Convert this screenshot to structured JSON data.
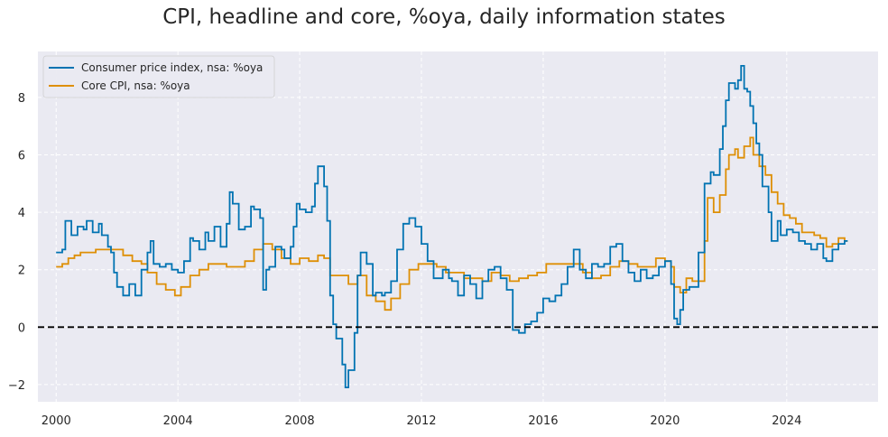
{
  "chart_data": {
    "type": "line",
    "title": "CPI, headline and core, %oya, daily information states",
    "xlabel": "",
    "ylabel": "",
    "xlim": [
      1999.4,
      2027.0
    ],
    "ylim": [
      -2.6,
      9.6
    ],
    "x_ticks": [
      2000,
      2004,
      2008,
      2012,
      2016,
      2020,
      2024
    ],
    "x_tick_labels": [
      "2000",
      "2004",
      "2008",
      "2012",
      "2016",
      "2020",
      "2024"
    ],
    "y_ticks": [
      -2,
      0,
      2,
      4,
      6,
      8
    ],
    "y_tick_labels": [
      "−2",
      "0",
      "2",
      "4",
      "6",
      "8"
    ],
    "grid": true,
    "legend_position": "top-left",
    "reference_line": {
      "y": 0,
      "style": "dashed",
      "color": "#000000"
    },
    "colors": {
      "background": "#EAEAF2",
      "grid": "#FFFFFF"
    },
    "series": [
      {
        "name": "Consumer price index, nsa: %oya",
        "color": "#0173B2",
        "step": true,
        "points": [
          [
            2000.0,
            2.6
          ],
          [
            2000.2,
            2.7
          ],
          [
            2000.3,
            3.7
          ],
          [
            2000.5,
            3.2
          ],
          [
            2000.7,
            3.5
          ],
          [
            2000.9,
            3.4
          ],
          [
            2001.0,
            3.7
          ],
          [
            2001.2,
            3.3
          ],
          [
            2001.4,
            3.6
          ],
          [
            2001.5,
            3.2
          ],
          [
            2001.7,
            2.8
          ],
          [
            2001.8,
            2.6
          ],
          [
            2001.9,
            1.9
          ],
          [
            2002.0,
            1.4
          ],
          [
            2002.2,
            1.1
          ],
          [
            2002.4,
            1.5
          ],
          [
            2002.6,
            1.1
          ],
          [
            2002.8,
            2.0
          ],
          [
            2003.0,
            2.6
          ],
          [
            2003.1,
            3.0
          ],
          [
            2003.2,
            2.2
          ],
          [
            2003.4,
            2.1
          ],
          [
            2003.6,
            2.2
          ],
          [
            2003.8,
            2.0
          ],
          [
            2004.0,
            1.9
          ],
          [
            2004.2,
            2.3
          ],
          [
            2004.4,
            3.1
          ],
          [
            2004.5,
            3.0
          ],
          [
            2004.7,
            2.7
          ],
          [
            2004.9,
            3.3
          ],
          [
            2005.0,
            3.0
          ],
          [
            2005.2,
            3.5
          ],
          [
            2005.4,
            2.8
          ],
          [
            2005.6,
            3.6
          ],
          [
            2005.7,
            4.7
          ],
          [
            2005.8,
            4.3
          ],
          [
            2006.0,
            3.4
          ],
          [
            2006.2,
            3.5
          ],
          [
            2006.4,
            4.2
          ],
          [
            2006.5,
            4.1
          ],
          [
            2006.7,
            3.8
          ],
          [
            2006.8,
            1.3
          ],
          [
            2006.9,
            2.0
          ],
          [
            2007.0,
            2.1
          ],
          [
            2007.2,
            2.8
          ],
          [
            2007.4,
            2.7
          ],
          [
            2007.5,
            2.4
          ],
          [
            2007.7,
            2.8
          ],
          [
            2007.8,
            3.5
          ],
          [
            2007.9,
            4.3
          ],
          [
            2008.0,
            4.1
          ],
          [
            2008.2,
            4.0
          ],
          [
            2008.4,
            4.2
          ],
          [
            2008.5,
            5.0
          ],
          [
            2008.6,
            5.6
          ],
          [
            2008.8,
            4.9
          ],
          [
            2008.9,
            3.7
          ],
          [
            2009.0,
            1.1
          ],
          [
            2009.1,
            0.1
          ],
          [
            2009.2,
            -0.4
          ],
          [
            2009.4,
            -1.3
          ],
          [
            2009.5,
            -2.1
          ],
          [
            2009.6,
            -1.5
          ],
          [
            2009.8,
            -0.2
          ],
          [
            2009.9,
            1.8
          ],
          [
            2010.0,
            2.6
          ],
          [
            2010.2,
            2.2
          ],
          [
            2010.4,
            1.1
          ],
          [
            2010.5,
            1.2
          ],
          [
            2010.7,
            1.1
          ],
          [
            2010.8,
            1.2
          ],
          [
            2011.0,
            1.6
          ],
          [
            2011.2,
            2.7
          ],
          [
            2011.4,
            3.6
          ],
          [
            2011.6,
            3.8
          ],
          [
            2011.8,
            3.5
          ],
          [
            2012.0,
            2.9
          ],
          [
            2012.2,
            2.3
          ],
          [
            2012.4,
            1.7
          ],
          [
            2012.6,
            1.7
          ],
          [
            2012.7,
            2.0
          ],
          [
            2012.9,
            1.7
          ],
          [
            2013.0,
            1.6
          ],
          [
            2013.2,
            1.1
          ],
          [
            2013.4,
            1.8
          ],
          [
            2013.6,
            1.5
          ],
          [
            2013.8,
            1.0
          ],
          [
            2014.0,
            1.6
          ],
          [
            2014.2,
            2.0
          ],
          [
            2014.4,
            2.1
          ],
          [
            2014.6,
            1.7
          ],
          [
            2014.8,
            1.3
          ],
          [
            2015.0,
            -0.1
          ],
          [
            2015.2,
            -0.2
          ],
          [
            2015.4,
            0.1
          ],
          [
            2015.6,
            0.2
          ],
          [
            2015.8,
            0.5
          ],
          [
            2016.0,
            1.0
          ],
          [
            2016.2,
            0.9
          ],
          [
            2016.4,
            1.1
          ],
          [
            2016.6,
            1.5
          ],
          [
            2016.8,
            2.1
          ],
          [
            2017.0,
            2.7
          ],
          [
            2017.2,
            2.0
          ],
          [
            2017.4,
            1.7
          ],
          [
            2017.6,
            2.2
          ],
          [
            2017.8,
            2.1
          ],
          [
            2018.0,
            2.2
          ],
          [
            2018.2,
            2.8
          ],
          [
            2018.4,
            2.9
          ],
          [
            2018.6,
            2.3
          ],
          [
            2018.8,
            1.9
          ],
          [
            2019.0,
            1.6
          ],
          [
            2019.2,
            2.0
          ],
          [
            2019.4,
            1.7
          ],
          [
            2019.6,
            1.8
          ],
          [
            2019.8,
            2.1
          ],
          [
            2020.0,
            2.3
          ],
          [
            2020.2,
            1.5
          ],
          [
            2020.3,
            0.3
          ],
          [
            2020.4,
            0.1
          ],
          [
            2020.5,
            0.6
          ],
          [
            2020.6,
            1.3
          ],
          [
            2020.8,
            1.4
          ],
          [
            2021.0,
            1.4
          ],
          [
            2021.1,
            2.6
          ],
          [
            2021.3,
            5.0
          ],
          [
            2021.5,
            5.4
          ],
          [
            2021.6,
            5.3
          ],
          [
            2021.8,
            6.2
          ],
          [
            2021.9,
            7.0
          ],
          [
            2022.0,
            7.9
          ],
          [
            2022.1,
            8.5
          ],
          [
            2022.3,
            8.3
          ],
          [
            2022.4,
            8.6
          ],
          [
            2022.5,
            9.1
          ],
          [
            2022.6,
            8.3
          ],
          [
            2022.7,
            8.2
          ],
          [
            2022.8,
            7.7
          ],
          [
            2022.9,
            7.1
          ],
          [
            2023.0,
            6.4
          ],
          [
            2023.1,
            6.0
          ],
          [
            2023.2,
            4.9
          ],
          [
            2023.4,
            4.0
          ],
          [
            2023.5,
            3.0
          ],
          [
            2023.7,
            3.7
          ],
          [
            2023.8,
            3.2
          ],
          [
            2024.0,
            3.4
          ],
          [
            2024.2,
            3.3
          ],
          [
            2024.4,
            3.0
          ],
          [
            2024.6,
            2.9
          ],
          [
            2024.8,
            2.7
          ],
          [
            2025.0,
            2.9
          ],
          [
            2025.2,
            2.4
          ],
          [
            2025.3,
            2.3
          ],
          [
            2025.5,
            2.7
          ],
          [
            2025.7,
            2.9
          ],
          [
            2025.9,
            3.0
          ]
        ]
      },
      {
        "name": "Core CPI, nsa: %oya",
        "color": "#DE8F05",
        "step": true,
        "points": [
          [
            2000.0,
            2.1
          ],
          [
            2000.2,
            2.2
          ],
          [
            2000.4,
            2.4
          ],
          [
            2000.6,
            2.5
          ],
          [
            2000.8,
            2.6
          ],
          [
            2001.0,
            2.6
          ],
          [
            2001.3,
            2.7
          ],
          [
            2001.6,
            2.7
          ],
          [
            2001.9,
            2.7
          ],
          [
            2002.2,
            2.5
          ],
          [
            2002.5,
            2.3
          ],
          [
            2002.8,
            2.2
          ],
          [
            2003.0,
            1.9
          ],
          [
            2003.3,
            1.5
          ],
          [
            2003.6,
            1.3
          ],
          [
            2003.9,
            1.1
          ],
          [
            2004.1,
            1.4
          ],
          [
            2004.4,
            1.8
          ],
          [
            2004.7,
            2.0
          ],
          [
            2005.0,
            2.2
          ],
          [
            2005.3,
            2.2
          ],
          [
            2005.6,
            2.1
          ],
          [
            2005.9,
            2.1
          ],
          [
            2006.2,
            2.3
          ],
          [
            2006.5,
            2.7
          ],
          [
            2006.8,
            2.9
          ],
          [
            2007.1,
            2.7
          ],
          [
            2007.4,
            2.4
          ],
          [
            2007.7,
            2.2
          ],
          [
            2008.0,
            2.4
          ],
          [
            2008.3,
            2.3
          ],
          [
            2008.6,
            2.5
          ],
          [
            2008.8,
            2.4
          ],
          [
            2009.0,
            1.8
          ],
          [
            2009.3,
            1.8
          ],
          [
            2009.6,
            1.5
          ],
          [
            2009.9,
            1.8
          ],
          [
            2010.2,
            1.1
          ],
          [
            2010.5,
            0.9
          ],
          [
            2010.8,
            0.6
          ],
          [
            2011.0,
            1.0
          ],
          [
            2011.3,
            1.5
          ],
          [
            2011.6,
            2.0
          ],
          [
            2011.9,
            2.2
          ],
          [
            2012.2,
            2.2
          ],
          [
            2012.5,
            2.1
          ],
          [
            2012.8,
            1.9
          ],
          [
            2013.1,
            1.9
          ],
          [
            2013.4,
            1.7
          ],
          [
            2013.7,
            1.7
          ],
          [
            2014.0,
            1.6
          ],
          [
            2014.3,
            1.9
          ],
          [
            2014.6,
            1.8
          ],
          [
            2014.9,
            1.6
          ],
          [
            2015.2,
            1.7
          ],
          [
            2015.5,
            1.8
          ],
          [
            2015.8,
            1.9
          ],
          [
            2016.1,
            2.2
          ],
          [
            2016.4,
            2.2
          ],
          [
            2016.7,
            2.2
          ],
          [
            2017.0,
            2.2
          ],
          [
            2017.3,
            1.9
          ],
          [
            2017.6,
            1.7
          ],
          [
            2017.9,
            1.8
          ],
          [
            2018.2,
            2.1
          ],
          [
            2018.5,
            2.3
          ],
          [
            2018.8,
            2.2
          ],
          [
            2019.1,
            2.1
          ],
          [
            2019.4,
            2.1
          ],
          [
            2019.7,
            2.4
          ],
          [
            2020.0,
            2.3
          ],
          [
            2020.2,
            2.1
          ],
          [
            2020.3,
            1.4
          ],
          [
            2020.5,
            1.2
          ],
          [
            2020.7,
            1.7
          ],
          [
            2020.9,
            1.6
          ],
          [
            2021.1,
            1.6
          ],
          [
            2021.3,
            3.0
          ],
          [
            2021.4,
            4.5
          ],
          [
            2021.6,
            4.0
          ],
          [
            2021.8,
            4.6
          ],
          [
            2022.0,
            5.5
          ],
          [
            2022.1,
            6.0
          ],
          [
            2022.3,
            6.2
          ],
          [
            2022.4,
            5.9
          ],
          [
            2022.6,
            6.3
          ],
          [
            2022.8,
            6.6
          ],
          [
            2022.9,
            6.0
          ],
          [
            2023.1,
            5.6
          ],
          [
            2023.3,
            5.3
          ],
          [
            2023.5,
            4.7
          ],
          [
            2023.7,
            4.3
          ],
          [
            2023.9,
            3.9
          ],
          [
            2024.1,
            3.8
          ],
          [
            2024.3,
            3.6
          ],
          [
            2024.5,
            3.3
          ],
          [
            2024.7,
            3.3
          ],
          [
            2024.9,
            3.2
          ],
          [
            2025.1,
            3.1
          ],
          [
            2025.3,
            2.8
          ],
          [
            2025.5,
            2.9
          ],
          [
            2025.7,
            3.1
          ],
          [
            2025.9,
            3.0
          ]
        ]
      }
    ]
  }
}
